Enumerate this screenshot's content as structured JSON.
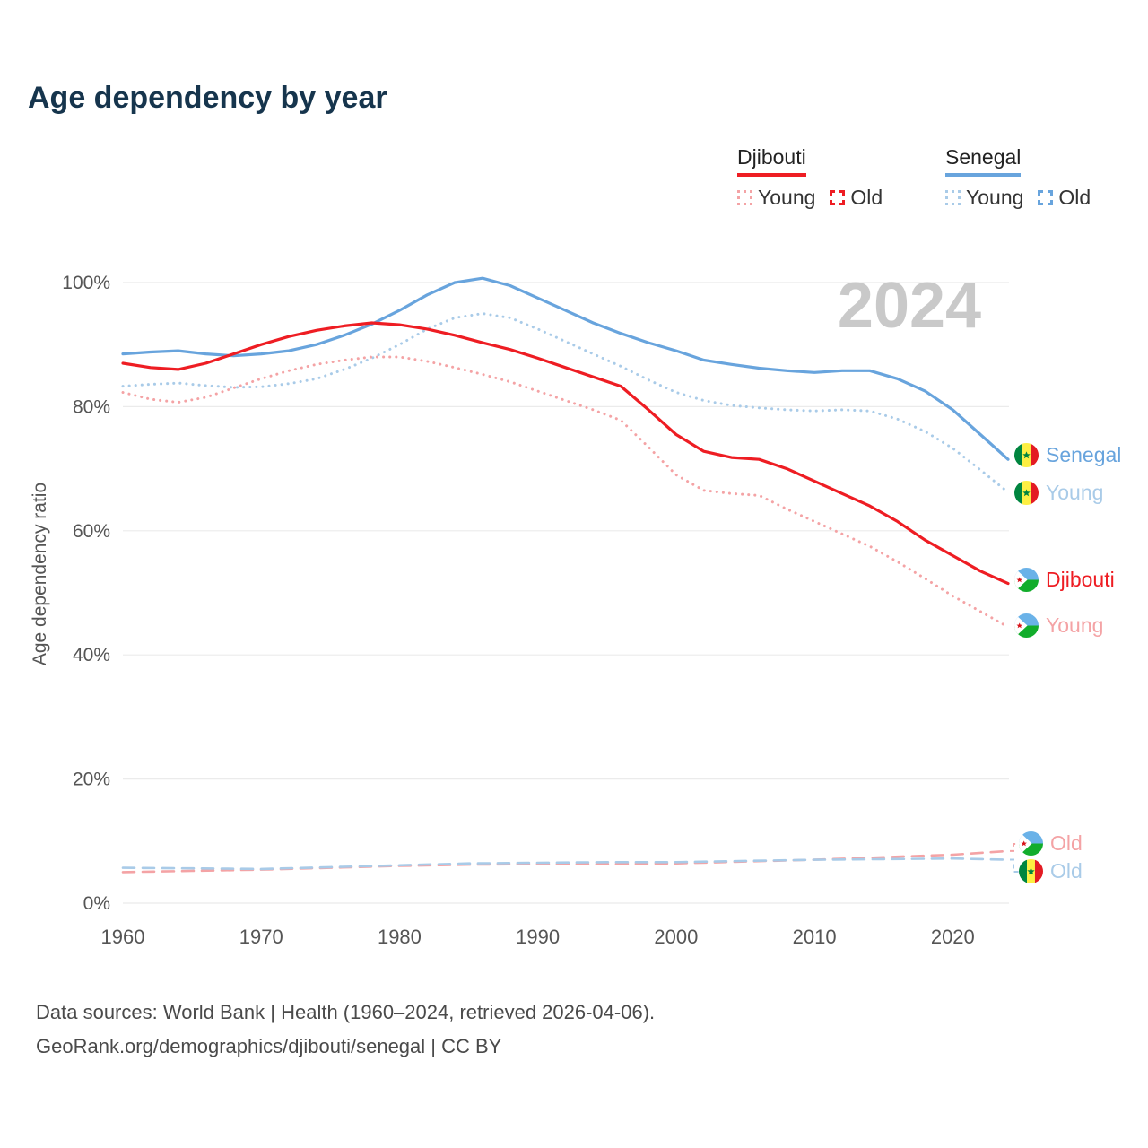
{
  "title": "Age dependency by year",
  "watermark": "2024",
  "colors": {
    "djibouti_total": "#ee1d23",
    "djibouti_young": "#f4a3a5",
    "senegal_total": "#68a4dd",
    "senegal_young": "#a9cbe8",
    "watermark": "#c9c9c9",
    "axis_text": "#555555",
    "gridline": "#ebebeb",
    "title": "#16354d"
  },
  "legend": {
    "djibouti": {
      "label": "Djibouti",
      "young": "Young",
      "old": "Old"
    },
    "senegal": {
      "label": "Senegal",
      "young": "Young",
      "old": "Old"
    }
  },
  "right_labels": {
    "senegal": "Senegal",
    "senegal_young": "Young",
    "djibouti": "Djibouti",
    "djibouti_young": "Young",
    "djibouti_old": "Old",
    "senegal_old": "Old"
  },
  "footer": {
    "line1": "Data sources: World Bank | Health (1960–2024, retrieved 2026-04-06).",
    "line2": "GeoRank.org/demographics/djibouti/senegal | CC BY"
  },
  "chart_data": {
    "type": "line",
    "title": "Age dependency by year",
    "xlabel": "",
    "ylabel": "Age dependency ratio",
    "xlim": [
      1960,
      2024
    ],
    "ylim": [
      0,
      100
    ],
    "grid": true,
    "legend_position": "top-right",
    "xticks": [
      1960,
      1970,
      1980,
      1990,
      2000,
      2010,
      2020
    ],
    "yticks": [
      0,
      20,
      40,
      60,
      80,
      100
    ],
    "ytick_suffix": "%",
    "series": [
      {
        "id": "senegal-total",
        "name": "Senegal",
        "country": "Senegal",
        "group": "total",
        "style": "solid",
        "width": 3.2,
        "color": "#68a4dd",
        "x": [
          1960,
          1962,
          1964,
          1966,
          1968,
          1970,
          1972,
          1974,
          1976,
          1978,
          1980,
          1982,
          1984,
          1986,
          1988,
          1990,
          1992,
          1994,
          1996,
          1998,
          2000,
          2002,
          2004,
          2006,
          2008,
          2010,
          2012,
          2014,
          2016,
          2018,
          2020,
          2022,
          2024
        ],
        "values": [
          88.5,
          88.8,
          89,
          88.5,
          88.2,
          88.5,
          89,
          90,
          91.5,
          93.3,
          95.5,
          98,
          100,
          100.7,
          99.5,
          97.5,
          95.5,
          93.5,
          91.8,
          90.3,
          89,
          87.5,
          86.8,
          86.2,
          85.8,
          85.5,
          85.8,
          85.8,
          84.5,
          82.5,
          79.5,
          75.5,
          71.5
        ]
      },
      {
        "id": "senegal-young",
        "name": "Senegal Young",
        "country": "Senegal",
        "group": "young",
        "style": "dotted",
        "width": 3,
        "color": "#a9cbe8",
        "x": [
          1960,
          1962,
          1964,
          1966,
          1968,
          1970,
          1972,
          1974,
          1976,
          1978,
          1980,
          1982,
          1984,
          1986,
          1988,
          1990,
          1992,
          1994,
          1996,
          1998,
          2000,
          2002,
          2004,
          2006,
          2008,
          2010,
          2012,
          2014,
          2016,
          2018,
          2020,
          2022,
          2024
        ],
        "values": [
          83.3,
          83.6,
          83.8,
          83.4,
          83.1,
          83.2,
          83.7,
          84.5,
          86,
          87.8,
          90,
          92.5,
          94.3,
          95,
          94.3,
          92.5,
          90.5,
          88.5,
          86.5,
          84.3,
          82.3,
          81,
          80.2,
          79.8,
          79.5,
          79.3,
          79.5,
          79.3,
          78,
          76,
          73.3,
          69.8,
          66.2
        ]
      },
      {
        "id": "djibouti-total",
        "name": "Djibouti",
        "country": "Djibouti",
        "group": "total",
        "style": "solid",
        "width": 3.2,
        "color": "#ee1d23",
        "x": [
          1960,
          1962,
          1964,
          1966,
          1968,
          1970,
          1972,
          1974,
          1976,
          1978,
          1980,
          1982,
          1984,
          1986,
          1988,
          1990,
          1992,
          1994,
          1996,
          1998,
          2000,
          2002,
          2004,
          2006,
          2008,
          2010,
          2012,
          2014,
          2016,
          2018,
          2020,
          2022,
          2024
        ],
        "values": [
          87,
          86.3,
          86,
          87,
          88.5,
          90,
          91.3,
          92.3,
          93,
          93.5,
          93.2,
          92.5,
          91.5,
          90.3,
          89.2,
          87.8,
          86.3,
          84.8,
          83.3,
          79.5,
          75.5,
          72.8,
          71.8,
          71.5,
          70,
          68,
          66,
          64,
          61.5,
          58.5,
          56,
          53.5,
          51.5
        ]
      },
      {
        "id": "djibouti-young",
        "name": "Djibouti Young",
        "country": "Djibouti",
        "group": "young",
        "style": "dotted",
        "width": 3,
        "color": "#f4a3a5",
        "x": [
          1960,
          1962,
          1964,
          1966,
          1968,
          1970,
          1972,
          1974,
          1976,
          1978,
          1980,
          1982,
          1984,
          1986,
          1988,
          1990,
          1992,
          1994,
          1996,
          1998,
          2000,
          2002,
          2004,
          2006,
          2008,
          2010,
          2012,
          2014,
          2016,
          2018,
          2020,
          2022,
          2024
        ],
        "values": [
          82.3,
          81.2,
          80.7,
          81.5,
          83,
          84.5,
          85.8,
          86.8,
          87.5,
          88,
          88,
          87.3,
          86.3,
          85.2,
          84,
          82.5,
          81,
          79.5,
          77.8,
          73.5,
          69,
          66.5,
          66,
          65.7,
          63.5,
          61.5,
          59.5,
          57.5,
          55,
          52.3,
          49.5,
          47,
          44.5
        ]
      },
      {
        "id": "djibouti-old",
        "name": "Djibouti Old",
        "country": "Djibouti",
        "group": "old",
        "style": "dashed",
        "width": 2.6,
        "color": "#f4a3a5",
        "x": [
          1960,
          1965,
          1970,
          1975,
          1980,
          1985,
          1990,
          1995,
          2000,
          2005,
          2010,
          2015,
          2020,
          2024
        ],
        "values": [
          5,
          5.2,
          5.4,
          5.7,
          6,
          6.2,
          6.3,
          6.3,
          6.4,
          6.7,
          7,
          7.4,
          7.8,
          8.4
        ]
      },
      {
        "id": "senegal-old",
        "name": "Senegal Old",
        "country": "Senegal",
        "group": "old",
        "style": "dashed",
        "width": 2.6,
        "color": "#a9cbe8",
        "x": [
          1960,
          1965,
          1970,
          1975,
          1980,
          1985,
          1990,
          1995,
          2000,
          2005,
          2010,
          2015,
          2020,
          2024
        ],
        "values": [
          5.7,
          5.6,
          5.5,
          5.8,
          6.1,
          6.4,
          6.5,
          6.6,
          6.6,
          6.8,
          7,
          7.1,
          7.2,
          7
        ]
      }
    ]
  }
}
